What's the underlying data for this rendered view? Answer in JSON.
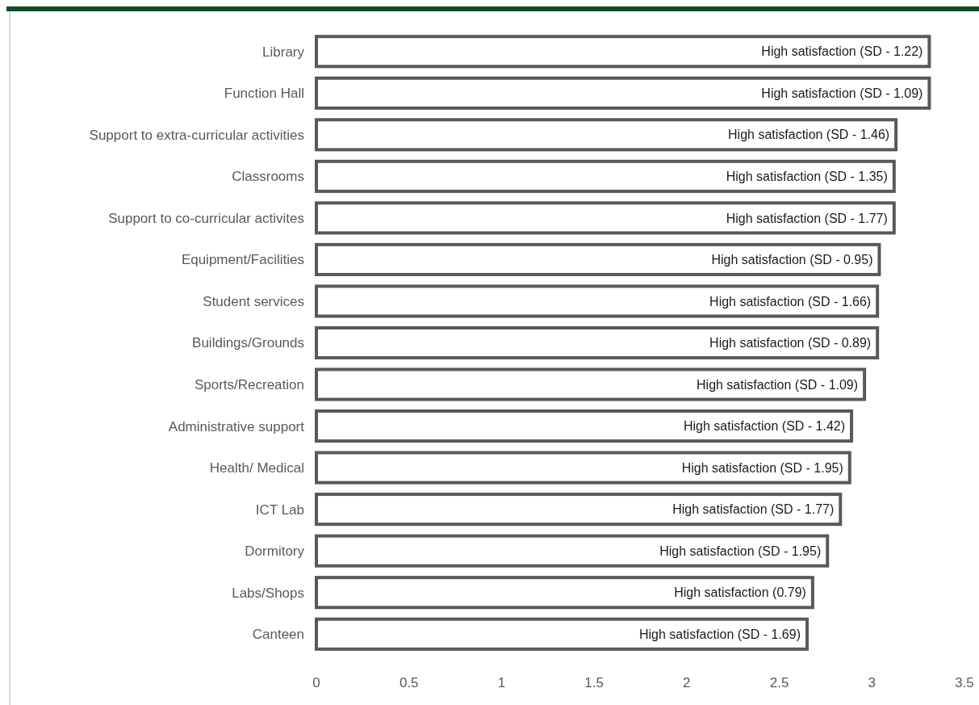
{
  "chart_data": {
    "type": "bar",
    "orientation": "horizontal",
    "categories": [
      "Library",
      "Function Hall",
      "Support to extra-curricular activities",
      "Classrooms",
      "Support to co-curricular activites",
      "Equipment/Facilities",
      "Student services",
      "Buildings/Grounds",
      "Sports/Recreation",
      "Administrative support",
      "Health/ Medical",
      "ICT Lab",
      "Dormitory",
      "Labs/Shops",
      "Canteen"
    ],
    "values": [
      3.31,
      3.31,
      3.13,
      3.12,
      3.12,
      3.04,
      3.03,
      3.03,
      2.96,
      2.89,
      2.88,
      2.83,
      2.76,
      2.68,
      2.65
    ],
    "annotations": [
      {
        "text": "High satisfaction (SD - 1.22)",
        "x": 3.31,
        "y": "Library"
      },
      {
        "text": "High satisfaction (SD - 1.09)",
        "x": 3.31,
        "y": "Function Hall"
      },
      {
        "text": "High satisfaction (SD - 1.46)",
        "x": 3.13,
        "y": "Support to extra-curricular activities"
      },
      {
        "text": "High satisfaction (SD - 1.35)",
        "x": 3.12,
        "y": "Classrooms"
      },
      {
        "text": "High satisfaction (SD - 1.77)",
        "x": 3.12,
        "y": "Support to co-curricular activites"
      },
      {
        "text": "High satisfaction (SD - 0.95)",
        "x": 3.04,
        "y": "Equipment/Facilities"
      },
      {
        "text": "High satisfaction (SD - 1.66)",
        "x": 3.03,
        "y": "Student services"
      },
      {
        "text": "High satisfaction (SD - 0.89)",
        "x": 3.03,
        "y": "Buildings/Grounds"
      },
      {
        "text": "High satisfaction (SD - 1.09)",
        "x": 2.96,
        "y": "Sports/Recreation"
      },
      {
        "text": "High satisfaction (SD - 1.42)",
        "x": 2.89,
        "y": "Administrative support"
      },
      {
        "text": "High satisfaction (SD - 1.95)",
        "x": 2.88,
        "y": "Health/ Medical"
      },
      {
        "text": "High satisfaction (SD - 1.77)",
        "x": 2.83,
        "y": "ICT Lab"
      },
      {
        "text": "High satisfaction (SD - 1.95)",
        "x": 2.76,
        "y": "Dormitory"
      },
      {
        "text": "High satisfaction (0.79)",
        "x": 2.68,
        "y": "Labs/Shops"
      },
      {
        "text": "High satisfaction (SD - 1.69)",
        "x": 2.65,
        "y": "Canteen"
      }
    ],
    "color": "#595959",
    "xlim": [
      0,
      3.5
    ],
    "xticks": [
      0,
      0.5,
      1,
      1.5,
      2,
      2.5,
      3,
      3.5
    ],
    "grid": false
  }
}
